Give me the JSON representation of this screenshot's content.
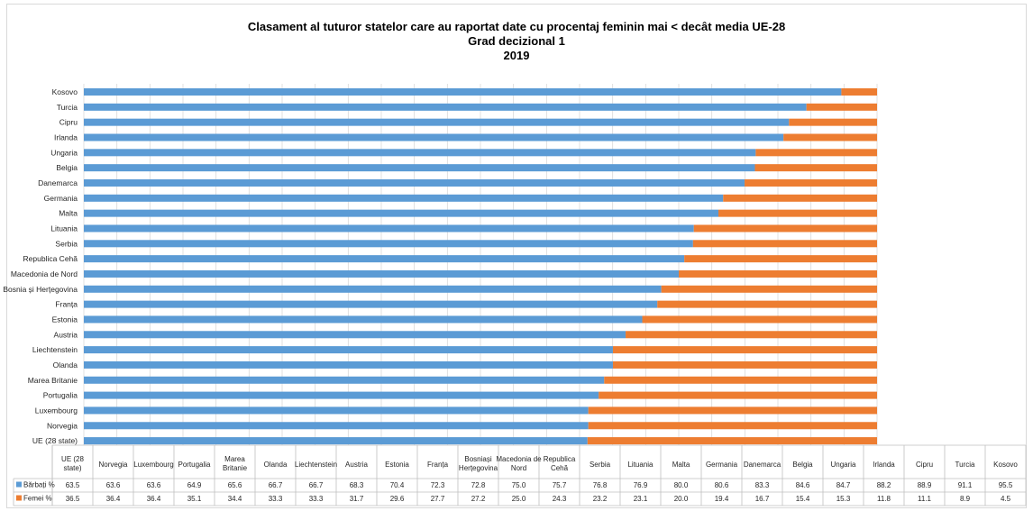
{
  "chart_data": {
    "type": "bar",
    "stacked": true,
    "orientation": "horizontal",
    "title": "Clasament al tuturor statelor care au raportat date cu procentaj feminin mai < decât media UE-28",
    "subtitle": "Grad decizional 1",
    "year": "2019",
    "categories": [
      "UE (28 state)",
      "Norvegia",
      "Luxembourg",
      "Portugalia",
      "Marea Britanie",
      "Olanda",
      "Liechtenstein",
      "Austria",
      "Estonia",
      "Franța",
      "Bosnia și Herțegovina",
      "Macedonia de Nord",
      "Republica Cehă",
      "Serbia",
      "Lituania",
      "Malta",
      "Germania",
      "Danemarca",
      "Belgia",
      "Ungaria",
      "Irlanda",
      "Cipru",
      "Turcia",
      "Kosovo"
    ],
    "table_categories": [
      "UE (28 state)",
      "Norvegia",
      "Luxembourg",
      "Portugalia",
      "Marea Britanie",
      "Olanda",
      "Liechtenstein",
      "Austria",
      "Estonia",
      "Franța",
      "Bosniași Herțegovina",
      "Macedonia de Nord",
      "Republica Cehă",
      "Serbia",
      "Lituania",
      "Malta",
      "Germania",
      "Danemarca",
      "Belgia",
      "Ungaria",
      "Irlanda",
      "Cipru",
      "Turcia",
      "Kosovo"
    ],
    "series": [
      {
        "name": "Bărbați %",
        "color": "#5b9bd5",
        "values": [
          63.5,
          63.6,
          63.6,
          64.9,
          65.6,
          66.7,
          66.7,
          68.3,
          70.4,
          72.3,
          72.8,
          75.0,
          75.7,
          76.8,
          76.9,
          80.0,
          80.6,
          83.3,
          84.6,
          84.7,
          88.2,
          88.9,
          91.1,
          95.5
        ]
      },
      {
        "name": "Femei %",
        "color": "#ed7d31",
        "values": [
          36.5,
          36.4,
          36.4,
          35.1,
          34.4,
          33.3,
          33.3,
          31.7,
          29.6,
          27.7,
          27.2,
          25.0,
          24.3,
          23.2,
          23.1,
          20.0,
          19.4,
          16.7,
          15.4,
          15.3,
          11.8,
          11.1,
          8.9,
          4.5
        ]
      }
    ],
    "xlim": [
      0,
      100
    ],
    "grid": true,
    "legend": "data-table"
  }
}
